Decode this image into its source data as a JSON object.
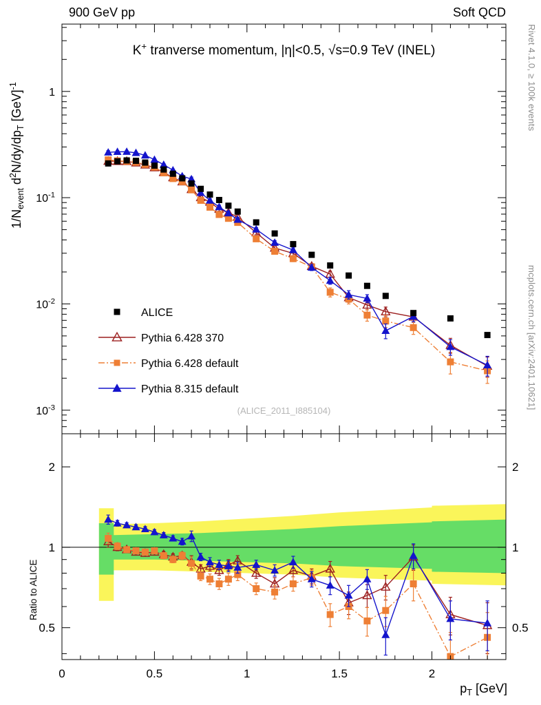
{
  "page": {
    "header_left": "900 GeV pp",
    "header_right": "Soft QCD",
    "side_top": "Rivet 4.1.0, ≥ 100k events",
    "side_bottom": "mcplots.cern.ch [arXiv:2401.10621]",
    "watermark": "(ALICE_2011_I885104)"
  },
  "chart_data": {
    "type": "line",
    "title_segments": [
      {
        "t": "K"
      },
      {
        "t": "+",
        "s": "sup"
      },
      {
        "t": " tranverse momentum, |"
      },
      {
        "t": "η"
      },
      {
        "t": "|<0.5, "
      },
      {
        "t": "√s"
      },
      {
        "t": "=0.9 TeV (INEL)"
      }
    ],
    "xlabel_segments": [
      {
        "t": "p"
      },
      {
        "t": "T",
        "s": "sub"
      },
      {
        "t": " [GeV]"
      }
    ],
    "ylabel_segments": [
      {
        "t": "1/N"
      },
      {
        "t": "event",
        "s": "sub"
      },
      {
        "t": " d"
      },
      {
        "t": "2",
        "s": "sup"
      },
      {
        "t": "N/dy/dp"
      },
      {
        "t": "T",
        "s": "sub"
      },
      {
        "t": " [GeV]"
      },
      {
        "t": "-1",
        "s": "sup"
      }
    ],
    "ratio_label": "Ratio to ALICE",
    "x_axis": {
      "min": 0,
      "max": 2.4,
      "major_ticks": [
        0,
        0.5,
        1,
        1.5,
        2
      ],
      "tick_labels": [
        "0",
        "0.5",
        "1",
        "1.5",
        "2"
      ],
      "minor_step": 0.1
    },
    "y_axis_top": {
      "scale": "log",
      "min": 0.0006,
      "max": 4.3,
      "major_ticks": [
        0.001,
        0.01,
        0.1,
        1
      ],
      "tick_labels": [
        "10^-3",
        "10^-2",
        "10^-1",
        "1"
      ]
    },
    "y_axis_ratio": {
      "scale": "log",
      "min": 0.38,
      "max": 2.66,
      "major_ticks": [
        0.5,
        1,
        2
      ],
      "tick_labels": [
        "0.5",
        "1",
        "2"
      ],
      "minor_ticks": [
        0.4,
        0.6,
        0.7,
        0.8,
        0.9
      ]
    },
    "x": [
      0.25,
      0.3,
      0.35,
      0.4,
      0.45,
      0.5,
      0.55,
      0.6,
      0.65,
      0.7,
      0.75,
      0.8,
      0.85,
      0.9,
      0.95,
      1.05,
      1.15,
      1.25,
      1.35,
      1.45,
      1.55,
      1.65,
      1.75,
      1.9,
      2.1,
      2.3
    ],
    "reference": {
      "name": "ALICE",
      "marker": "square",
      "color": "#000000",
      "values": [
        0.21,
        0.22,
        0.224,
        0.222,
        0.214,
        0.2,
        0.184,
        0.168,
        0.152,
        0.136,
        0.121,
        0.107,
        0.095,
        0.084,
        0.074,
        0.0585,
        0.046,
        0.0365,
        0.029,
        0.023,
        0.0185,
        0.0148,
        0.0119,
        0.0082,
        0.0073,
        0.0051
      ]
    },
    "series": [
      {
        "name": "Pythia 6.428 370",
        "marker": "triangle-open",
        "color": "#9c1f1f",
        "line": "solid",
        "ratio": [
          1.05,
          1.0,
          0.98,
          0.96,
          0.95,
          0.96,
          0.94,
          0.92,
          0.93,
          0.88,
          0.83,
          0.85,
          0.82,
          0.86,
          0.89,
          0.8,
          0.73,
          0.82,
          0.78,
          0.83,
          0.62,
          0.66,
          0.71,
          0.92,
          0.56,
          0.51
        ]
      },
      {
        "name": "Pythia 6.428 default",
        "marker": "square",
        "color": "#ee7f35",
        "line": "dashdot",
        "ratio": [
          1.08,
          1.01,
          0.98,
          0.97,
          0.96,
          0.97,
          0.93,
          0.9,
          0.93,
          0.87,
          0.78,
          0.76,
          0.73,
          0.76,
          0.79,
          0.7,
          0.68,
          0.73,
          0.77,
          0.56,
          0.6,
          0.53,
          0.58,
          0.73,
          0.39,
          0.46
        ]
      },
      {
        "name": "Pythia 8.315 default",
        "marker": "triangle",
        "color": "#1414cc",
        "line": "solid",
        "ratio": [
          1.27,
          1.23,
          1.21,
          1.19,
          1.17,
          1.14,
          1.11,
          1.08,
          1.05,
          1.1,
          0.92,
          0.88,
          0.86,
          0.85,
          0.84,
          0.86,
          0.82,
          0.88,
          0.76,
          0.72,
          0.66,
          0.76,
          0.47,
          0.93,
          0.54,
          0.52
        ]
      }
    ],
    "ratio_err": [
      0.05,
      0.03,
      0.025,
      0.025,
      0.025,
      0.025,
      0.025,
      0.025,
      0.03,
      0.05,
      0.03,
      0.035,
      0.035,
      0.04,
      0.04,
      0.035,
      0.04,
      0.045,
      0.05,
      0.055,
      0.06,
      0.065,
      0.075,
      0.1,
      0.09,
      0.11
    ],
    "bands": {
      "x": [
        0.2,
        0.28,
        0.28,
        0.5,
        0.75,
        1.0,
        1.25,
        1.5,
        1.75,
        2.0,
        2.0,
        2.4
      ],
      "yellow_lo": [
        0.63,
        0.63,
        0.82,
        0.82,
        0.81,
        0.8,
        0.79,
        0.77,
        0.76,
        0.75,
        0.73,
        0.72
      ],
      "yellow_hi": [
        1.4,
        1.4,
        1.22,
        1.23,
        1.25,
        1.28,
        1.31,
        1.35,
        1.38,
        1.41,
        1.43,
        1.45
      ],
      "green_lo": [
        0.79,
        0.79,
        0.9,
        0.9,
        0.89,
        0.88,
        0.87,
        0.85,
        0.84,
        0.83,
        0.81,
        0.8
      ],
      "green_hi": [
        1.23,
        1.23,
        1.11,
        1.12,
        1.13,
        1.15,
        1.17,
        1.2,
        1.22,
        1.24,
        1.25,
        1.27
      ]
    },
    "colors": {
      "band_outer": "#faf55a",
      "band_inner": "#66dd66",
      "axis": "#000000"
    },
    "legend_position": "left-middle",
    "grid": false
  }
}
